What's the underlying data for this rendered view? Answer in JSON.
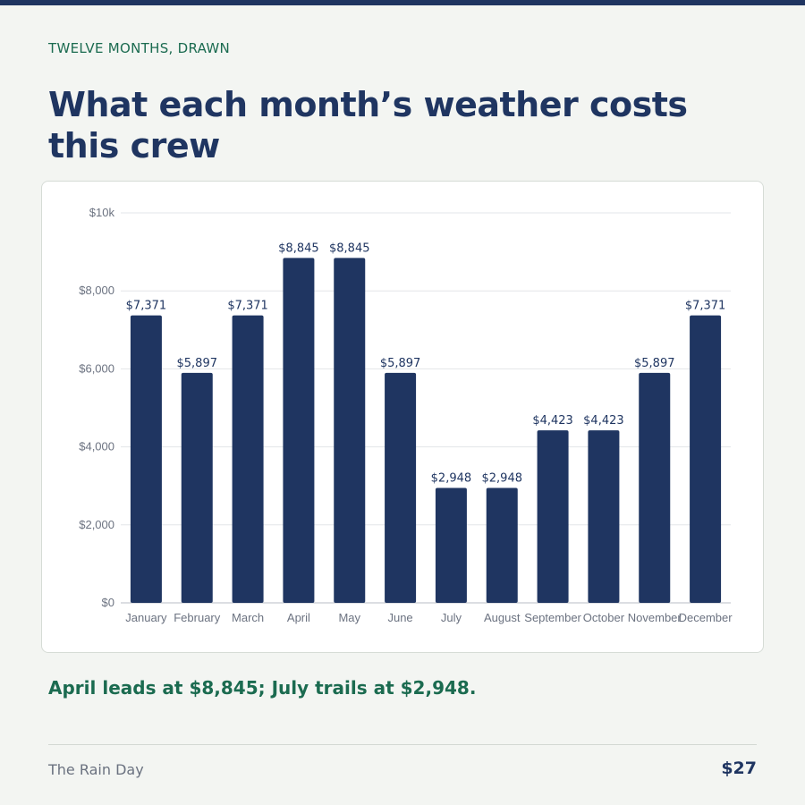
{
  "header": {
    "eyebrow": "TWELVE MONTHS, DRAWN",
    "title": "What each month’s weather costs this crew"
  },
  "summary": "April leads at $8,845; July trails at $2,948.",
  "footer": {
    "brand": "The Rain Day",
    "price": "$27"
  },
  "colors": {
    "bar": "#1f3561",
    "accent": "#1b6b50",
    "background": "#f3f5f2"
  },
  "chart_data": {
    "type": "bar",
    "title": "",
    "xlabel": "",
    "ylabel": "",
    "categories": [
      "January",
      "February",
      "March",
      "April",
      "May",
      "June",
      "July",
      "August",
      "September",
      "October",
      "November",
      "December"
    ],
    "values": [
      7371,
      5897,
      7371,
      8845,
      8845,
      5897,
      2948,
      2948,
      4423,
      4423,
      5897,
      7371
    ],
    "data_labels": [
      "$7,371",
      "$5,897",
      "$7,371",
      "$8,845",
      "$8,845",
      "$5,897",
      "$2,948",
      "$2,948",
      "$4,423",
      "$4,423",
      "$5,897",
      "$7,371"
    ],
    "ylim": [
      0,
      10000
    ],
    "yticks": [
      0,
      2000,
      4000,
      6000,
      8000,
      10000
    ],
    "ytick_labels": [
      "$0",
      "$2,000",
      "$4,000",
      "$6,000",
      "$8,000",
      "$10k"
    ],
    "grid": true,
    "legend": "none"
  }
}
